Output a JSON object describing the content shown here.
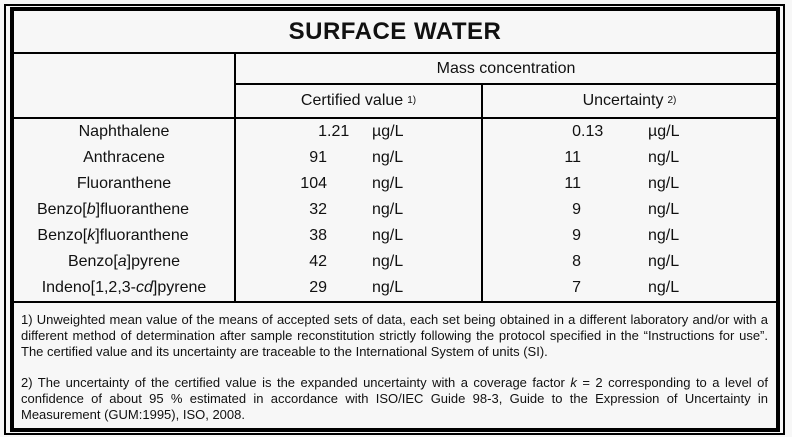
{
  "title": "SURFACE WATER",
  "header": {
    "mass_concentration": "Mass concentration",
    "certified_value": {
      "label": "Certified value",
      "sup": "1)"
    },
    "uncertainty": {
      "label": "Uncertainty",
      "sup": "2)"
    }
  },
  "table": {
    "rows": [
      {
        "name": {
          "pre": "Naphthalene",
          "it": "",
          "post": ""
        },
        "certified": {
          "int": "1",
          "frac": ".21",
          "unit": "µg/L"
        },
        "uncertainty": {
          "int": "0",
          "frac": ".13",
          "unit": "µg/L"
        }
      },
      {
        "name": {
          "pre": "Anthracene",
          "it": "",
          "post": ""
        },
        "certified": {
          "int": "91",
          "frac": "",
          "unit": "ng/L"
        },
        "uncertainty": {
          "int": "11",
          "frac": "",
          "unit": "ng/L"
        }
      },
      {
        "name": {
          "pre": "Fluoranthene",
          "it": "",
          "post": ""
        },
        "certified": {
          "int": "104",
          "frac": "",
          "unit": "ng/L"
        },
        "uncertainty": {
          "int": "11",
          "frac": "",
          "unit": "ng/L"
        }
      },
      {
        "name": {
          "pre": "Benzo[",
          "it": "b",
          "post": "]fluoranthene"
        },
        "certified": {
          "int": "32",
          "frac": "",
          "unit": "ng/L"
        },
        "uncertainty": {
          "int": "9",
          "frac": "",
          "unit": "ng/L"
        }
      },
      {
        "name": {
          "pre": "Benzo[",
          "it": "k",
          "post": "]fluoranthene"
        },
        "certified": {
          "int": "38",
          "frac": "",
          "unit": "ng/L"
        },
        "uncertainty": {
          "int": "9",
          "frac": "",
          "unit": "ng/L"
        }
      },
      {
        "name": {
          "pre": "Benzo[",
          "it": "a",
          "post": "]pyrene"
        },
        "certified": {
          "int": "42",
          "frac": "",
          "unit": "ng/L"
        },
        "uncertainty": {
          "int": "8",
          "frac": "",
          "unit": "ng/L"
        }
      },
      {
        "name": {
          "pre": "Indeno[1,2,3-",
          "it": "cd",
          "post": "]pyrene"
        },
        "certified": {
          "int": "29",
          "frac": "",
          "unit": "ng/L"
        },
        "uncertainty": {
          "int": "7",
          "frac": "",
          "unit": "ng/L"
        }
      }
    ]
  },
  "footnotes": {
    "note1": [
      {
        "t": "1) Unweighted mean value of the means of accepted sets of data, each set being obtained in a different laboratory and/or with a different method of determination after sample reconstitution strictly following the protocol specified in the “Instructions for use”. The certified value and its uncertainty are traceable to the International System of units (SI)."
      }
    ],
    "note2": [
      {
        "t": "2) The uncertainty of the certified value is the expanded uncertainty with a coverage factor "
      },
      {
        "t": "k",
        "i": true
      },
      {
        "t": " = 2 corresponding to a level of confidence of about 95 % estimated in accordance with ISO/IEC Guide 98-3, Guide to the Expression of Uncertainty in Measurement (GUM:1995), ISO, 2008."
      }
    ]
  },
  "colors": {
    "background": "#f7f7f7",
    "border": "#000000",
    "text": "#111111"
  }
}
